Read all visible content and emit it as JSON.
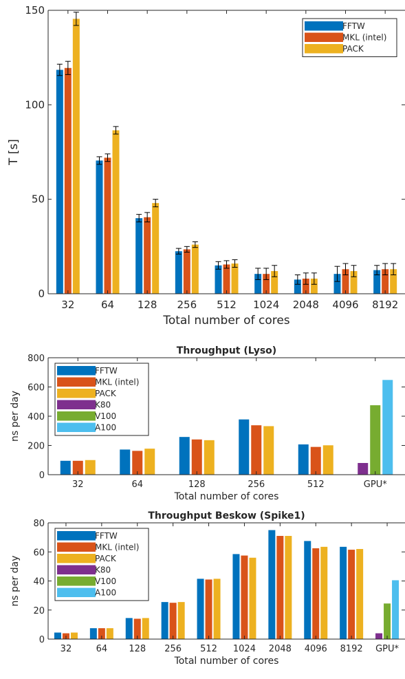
{
  "colors": {
    "FFTW": "#0072bd",
    "MKL (intel)": "#d95319",
    "PACK": "#edb120",
    "K80": "#7e2f8e",
    "V100": "#77ac30",
    "A100": "#4dbeee",
    "axis": "#262626",
    "errorbar": "#000000"
  },
  "chart_data": [
    {
      "type": "bar",
      "title": "",
      "xlabel": "Total number of cores",
      "ylabel": "T [s]",
      "categories": [
        "32",
        "64",
        "128",
        "256",
        "512",
        "1024",
        "2048",
        "4096",
        "8192"
      ],
      "ylim": [
        0,
        150
      ],
      "yticks": [
        0,
        50,
        100,
        150
      ],
      "legend_position": "top-right",
      "grid": false,
      "series": [
        {
          "name": "FFTW",
          "values": [
            118.5,
            70.5,
            40,
            22.5,
            15,
            10.5,
            7.5,
            10.5,
            12.5
          ],
          "errors": [
            3,
            2,
            2,
            1.5,
            2,
            3,
            2.5,
            4,
            2.5
          ]
        },
        {
          "name": "MKL (intel)",
          "values": [
            119.5,
            72,
            40.5,
            23.5,
            15.5,
            10.5,
            8,
            13,
            13
          ],
          "errors": [
            3.5,
            2,
            2.5,
            1.5,
            2,
            3,
            3,
            3,
            3
          ]
        },
        {
          "name": "PACK",
          "values": [
            145.5,
            86.5,
            48,
            26,
            16,
            12,
            8,
            12,
            13
          ],
          "errors": [
            3.5,
            2,
            2,
            1.5,
            2,
            3,
            3,
            3,
            3
          ]
        }
      ]
    },
    {
      "type": "bar",
      "title": "Throughput (Lyso)",
      "xlabel": "Total number of cores",
      "ylabel": "ns per day",
      "categories": [
        "32",
        "64",
        "128",
        "256",
        "512",
        "GPU*"
      ],
      "ylim": [
        0,
        800
      ],
      "yticks": [
        0,
        200,
        400,
        600,
        800
      ],
      "legend_position": "top-left",
      "grid": false,
      "series": [
        {
          "name": "FFTW",
          "values": [
            95,
            172,
            258,
            378,
            207,
            null
          ]
        },
        {
          "name": "MKL (intel)",
          "values": [
            95,
            163,
            241,
            338,
            190,
            null
          ]
        },
        {
          "name": "PACK",
          "values": [
            100,
            178,
            236,
            332,
            201,
            null
          ]
        },
        {
          "name": "K80",
          "values": [
            null,
            null,
            null,
            null,
            null,
            80
          ]
        },
        {
          "name": "V100",
          "values": [
            null,
            null,
            null,
            null,
            null,
            475
          ]
        },
        {
          "name": "A100",
          "values": [
            null,
            null,
            null,
            null,
            null,
            648
          ]
        }
      ]
    },
    {
      "type": "bar",
      "title": "Throughput Beskow (Spike1)",
      "xlabel": "Total number of cores",
      "ylabel": "ns per day",
      "categories": [
        "32",
        "64",
        "128",
        "256",
        "512",
        "1024",
        "2048",
        "4096",
        "8192",
        "GPU*"
      ],
      "ylim": [
        0,
        80
      ],
      "yticks": [
        0,
        20,
        40,
        60,
        80
      ],
      "legend_position": "top-left",
      "grid": false,
      "series": [
        {
          "name": "FFTW",
          "values": [
            4.5,
            7.5,
            14.5,
            25.5,
            41.5,
            58.5,
            75,
            67.5,
            63.5,
            null
          ]
        },
        {
          "name": "MKL (intel)",
          "values": [
            4,
            7.5,
            14,
            25,
            41,
            57.5,
            71,
            62.5,
            61.5,
            null
          ]
        },
        {
          "name": "PACK",
          "values": [
            4.5,
            7.5,
            14.5,
            25.5,
            41.5,
            56,
            71,
            63.5,
            62,
            null
          ]
        },
        {
          "name": "K80",
          "values": [
            null,
            null,
            null,
            null,
            null,
            null,
            null,
            null,
            null,
            4
          ]
        },
        {
          "name": "V100",
          "values": [
            null,
            null,
            null,
            null,
            null,
            null,
            null,
            null,
            null,
            24.5
          ]
        },
        {
          "name": "A100",
          "values": [
            null,
            null,
            null,
            null,
            null,
            null,
            null,
            null,
            null,
            40.5
          ]
        }
      ]
    }
  ]
}
